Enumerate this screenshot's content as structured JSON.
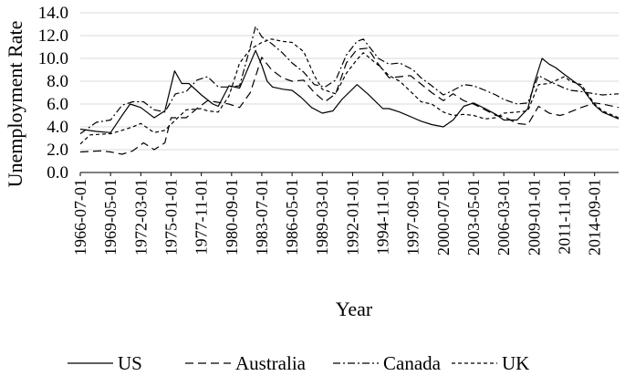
{
  "chart_data": {
    "type": "line",
    "xlabel": "Year",
    "ylabel": "Unemployment Rate",
    "ylim": [
      0,
      14
    ],
    "yticks": [
      "0.0",
      "2.0",
      "4.0",
      "6.0",
      "8.0",
      "10.0",
      "12.0",
      "14.0"
    ],
    "xrange": [
      "1966-07-01",
      "2016-12-01"
    ],
    "xticks": [
      "1966-07-01",
      "1969-05-01",
      "1972-03-01",
      "1975-01-01",
      "1977-11-01",
      "1980-09-01",
      "1983-07-01",
      "1986-05-01",
      "1989-03-01",
      "1992-01-01",
      "1994-11-01",
      "1997-09-01",
      "2000-07-01",
      "2003-05-01",
      "2006-03-01",
      "2009-01-01",
      "2011-11-01",
      "2014-09-01"
    ],
    "grid": true,
    "legend_position": "bottom",
    "series": [
      {
        "name": "US",
        "dash": "solid",
        "points": [
          [
            "1966-07-01",
            3.8
          ],
          [
            "1968-01-01",
            3.6
          ],
          [
            "1969-05-01",
            3.5
          ],
          [
            "1970-06-01",
            5.0
          ],
          [
            "1971-03-01",
            6.0
          ],
          [
            "1972-03-01",
            5.7
          ],
          [
            "1973-06-01",
            4.8
          ],
          [
            "1974-06-01",
            5.4
          ],
          [
            "1975-05-01",
            8.9
          ],
          [
            "1976-01-01",
            7.8
          ],
          [
            "1976-09-01",
            7.8
          ],
          [
            "1977-11-01",
            6.8
          ],
          [
            "1978-12-01",
            6.0
          ],
          [
            "1979-06-01",
            5.8
          ],
          [
            "1980-06-01",
            7.6
          ],
          [
            "1981-06-01",
            7.4
          ],
          [
            "1982-12-01",
            10.7
          ],
          [
            "1983-07-01",
            9.4
          ],
          [
            "1984-01-01",
            8.0
          ],
          [
            "1984-07-01",
            7.5
          ],
          [
            "1985-07-01",
            7.3
          ],
          [
            "1986-05-01",
            7.2
          ],
          [
            "1987-03-01",
            6.6
          ],
          [
            "1988-03-01",
            5.7
          ],
          [
            "1989-03-01",
            5.2
          ],
          [
            "1990-03-01",
            5.4
          ],
          [
            "1991-01-01",
            6.4
          ],
          [
            "1992-06-01",
            7.7
          ],
          [
            "1993-06-01",
            6.9
          ],
          [
            "1994-11-01",
            5.6
          ],
          [
            "1995-06-01",
            5.6
          ],
          [
            "1996-06-01",
            5.3
          ],
          [
            "1997-09-01",
            4.8
          ],
          [
            "1998-06-01",
            4.5
          ],
          [
            "1999-06-01",
            4.2
          ],
          [
            "2000-07-01",
            4.0
          ],
          [
            "2001-06-01",
            4.6
          ],
          [
            "2002-06-01",
            5.8
          ],
          [
            "2003-05-01",
            6.1
          ],
          [
            "2004-06-01",
            5.6
          ],
          [
            "2005-06-01",
            5.1
          ],
          [
            "2006-03-01",
            4.6
          ],
          [
            "2007-06-01",
            4.6
          ],
          [
            "2008-06-01",
            5.6
          ],
          [
            "2009-01-01",
            7.8
          ],
          [
            "2009-10-01",
            10.0
          ],
          [
            "2010-06-01",
            9.5
          ],
          [
            "2011-01-01",
            9.2
          ],
          [
            "2011-11-01",
            8.6
          ],
          [
            "2012-06-01",
            8.2
          ],
          [
            "2013-06-01",
            7.5
          ],
          [
            "2014-09-01",
            5.9
          ],
          [
            "2015-06-01",
            5.3
          ],
          [
            "2016-12-01",
            4.7
          ]
        ]
      },
      {
        "name": "Australia",
        "dash": "long-dash",
        "points": [
          [
            "1966-07-01",
            1.8
          ],
          [
            "1968-06-01",
            1.9
          ],
          [
            "1969-05-01",
            1.8
          ],
          [
            "1970-06-01",
            1.6
          ],
          [
            "1971-06-01",
            1.9
          ],
          [
            "1972-06-01",
            2.6
          ],
          [
            "1973-06-01",
            2.0
          ],
          [
            "1974-06-01",
            2.6
          ],
          [
            "1975-01-01",
            4.8
          ],
          [
            "1976-06-01",
            4.8
          ],
          [
            "1977-06-01",
            5.6
          ],
          [
            "1978-06-01",
            6.3
          ],
          [
            "1980-06-01",
            6.0
          ],
          [
            "1981-06-01",
            5.7
          ],
          [
            "1982-06-01",
            7.0
          ],
          [
            "1983-07-01",
            10.1
          ],
          [
            "1984-06-01",
            9.0
          ],
          [
            "1985-06-01",
            8.3
          ],
          [
            "1986-05-01",
            8.0
          ],
          [
            "1987-06-01",
            8.1
          ],
          [
            "1988-06-01",
            7.0
          ],
          [
            "1989-06-01",
            6.2
          ],
          [
            "1990-06-01",
            6.9
          ],
          [
            "1991-06-01",
            9.6
          ],
          [
            "1992-06-01",
            10.8
          ],
          [
            "1993-06-01",
            10.9
          ],
          [
            "1994-06-01",
            9.5
          ],
          [
            "1995-06-01",
            8.3
          ],
          [
            "1997-06-01",
            8.5
          ],
          [
            "1999-06-01",
            7.0
          ],
          [
            "2000-07-01",
            6.3
          ],
          [
            "2001-06-01",
            6.9
          ],
          [
            "2002-06-01",
            6.3
          ],
          [
            "2003-05-01",
            6.0
          ],
          [
            "2004-06-01",
            5.5
          ],
          [
            "2005-06-01",
            5.0
          ],
          [
            "2006-03-01",
            4.9
          ],
          [
            "2007-06-01",
            4.3
          ],
          [
            "2008-06-01",
            4.2
          ],
          [
            "2009-06-01",
            5.8
          ],
          [
            "2010-06-01",
            5.2
          ],
          [
            "2011-06-01",
            5.0
          ],
          [
            "2011-11-01",
            5.1
          ],
          [
            "2013-06-01",
            5.7
          ],
          [
            "2014-09-01",
            6.1
          ],
          [
            "2015-06-01",
            6.0
          ],
          [
            "2016-12-01",
            5.7
          ]
        ]
      },
      {
        "name": "Canada",
        "dash": "dash-dot",
        "points": [
          [
            "1966-07-01",
            3.4
          ],
          [
            "1968-01-01",
            4.4
          ],
          [
            "1969-05-01",
            4.6
          ],
          [
            "1970-06-01",
            5.9
          ],
          [
            "1971-06-01",
            6.2
          ],
          [
            "1972-06-01",
            6.2
          ],
          [
            "1973-06-01",
            5.5
          ],
          [
            "1974-06-01",
            5.3
          ],
          [
            "1975-06-01",
            6.9
          ],
          [
            "1976-06-01",
            7.1
          ],
          [
            "1977-06-01",
            8.1
          ],
          [
            "1978-06-01",
            8.4
          ],
          [
            "1979-06-01",
            7.5
          ],
          [
            "1980-06-01",
            7.5
          ],
          [
            "1981-06-01",
            7.6
          ],
          [
            "1982-06-01",
            11.0
          ],
          [
            "1982-12-01",
            12.8
          ],
          [
            "1983-07-01",
            11.9
          ],
          [
            "1984-06-01",
            11.3
          ],
          [
            "1985-06-01",
            10.5
          ],
          [
            "1986-05-01",
            9.6
          ],
          [
            "1987-06-01",
            8.8
          ],
          [
            "1988-06-01",
            7.7
          ],
          [
            "1989-06-01",
            7.5
          ],
          [
            "1990-06-01",
            8.1
          ],
          [
            "1991-06-01",
            10.3
          ],
          [
            "1992-06-01",
            11.5
          ],
          [
            "1993-01-01",
            11.7
          ],
          [
            "1994-06-01",
            10.0
          ],
          [
            "1995-06-01",
            9.5
          ],
          [
            "1996-06-01",
            9.6
          ],
          [
            "1997-09-01",
            9.0
          ],
          [
            "1998-06-01",
            8.3
          ],
          [
            "1999-06-01",
            7.6
          ],
          [
            "2000-07-01",
            6.8
          ],
          [
            "2001-06-01",
            7.2
          ],
          [
            "2002-06-01",
            7.7
          ],
          [
            "2003-05-01",
            7.6
          ],
          [
            "2004-06-01",
            7.2
          ],
          [
            "2005-06-01",
            6.8
          ],
          [
            "2006-03-01",
            6.4
          ],
          [
            "2007-06-01",
            6.0
          ],
          [
            "2008-06-01",
            6.1
          ],
          [
            "2009-06-01",
            8.5
          ],
          [
            "2010-06-01",
            8.0
          ],
          [
            "2011-11-01",
            7.4
          ],
          [
            "2012-06-01",
            7.2
          ],
          [
            "2013-06-01",
            7.1
          ],
          [
            "2014-09-01",
            6.9
          ],
          [
            "2015-06-01",
            6.8
          ],
          [
            "2016-12-01",
            6.9
          ]
        ]
      },
      {
        "name": "UK",
        "dash": "short-dash",
        "points": [
          [
            "1966-07-01",
            2.5
          ],
          [
            "1967-06-01",
            3.3
          ],
          [
            "1969-05-01",
            3.4
          ],
          [
            "1970-06-01",
            3.7
          ],
          [
            "1971-06-01",
            4.0
          ],
          [
            "1972-03-01",
            4.3
          ],
          [
            "1973-06-01",
            3.5
          ],
          [
            "1974-06-01",
            3.7
          ],
          [
            "1975-06-01",
            4.6
          ],
          [
            "1976-06-01",
            5.5
          ],
          [
            "1977-11-01",
            5.6
          ],
          [
            "1978-06-01",
            5.4
          ],
          [
            "1979-06-01",
            5.3
          ],
          [
            "1980-06-01",
            6.7
          ],
          [
            "1981-06-01",
            9.6
          ],
          [
            "1982-06-01",
            10.8
          ],
          [
            "1983-07-01",
            11.4
          ],
          [
            "1984-06-01",
            11.7
          ],
          [
            "1985-06-01",
            11.5
          ],
          [
            "1986-05-01",
            11.4
          ],
          [
            "1987-06-01",
            10.6
          ],
          [
            "1988-06-01",
            8.5
          ],
          [
            "1989-03-01",
            7.3
          ],
          [
            "1990-06-01",
            6.9
          ],
          [
            "1991-06-01",
            8.7
          ],
          [
            "1992-06-01",
            9.9
          ],
          [
            "1993-01-01",
            10.5
          ],
          [
            "1994-06-01",
            9.4
          ],
          [
            "1995-06-01",
            8.5
          ],
          [
            "1996-06-01",
            8.0
          ],
          [
            "1997-09-01",
            6.9
          ],
          [
            "1998-06-01",
            6.2
          ],
          [
            "1999-06-01",
            6.0
          ],
          [
            "2000-07-01",
            5.3
          ],
          [
            "2001-06-01",
            5.0
          ],
          [
            "2002-06-01",
            5.1
          ],
          [
            "2003-05-01",
            5.0
          ],
          [
            "2004-06-01",
            4.7
          ],
          [
            "2005-06-01",
            4.8
          ],
          [
            "2006-03-01",
            5.2
          ],
          [
            "2007-06-01",
            5.3
          ],
          [
            "2008-06-01",
            5.4
          ],
          [
            "2009-06-01",
            7.7
          ],
          [
            "2010-06-01",
            7.8
          ],
          [
            "2011-11-01",
            8.4
          ],
          [
            "2012-06-01",
            8.0
          ],
          [
            "2013-06-01",
            7.7
          ],
          [
            "2014-09-01",
            6.0
          ],
          [
            "2015-06-01",
            5.4
          ],
          [
            "2016-12-01",
            4.8
          ]
        ]
      }
    ]
  }
}
